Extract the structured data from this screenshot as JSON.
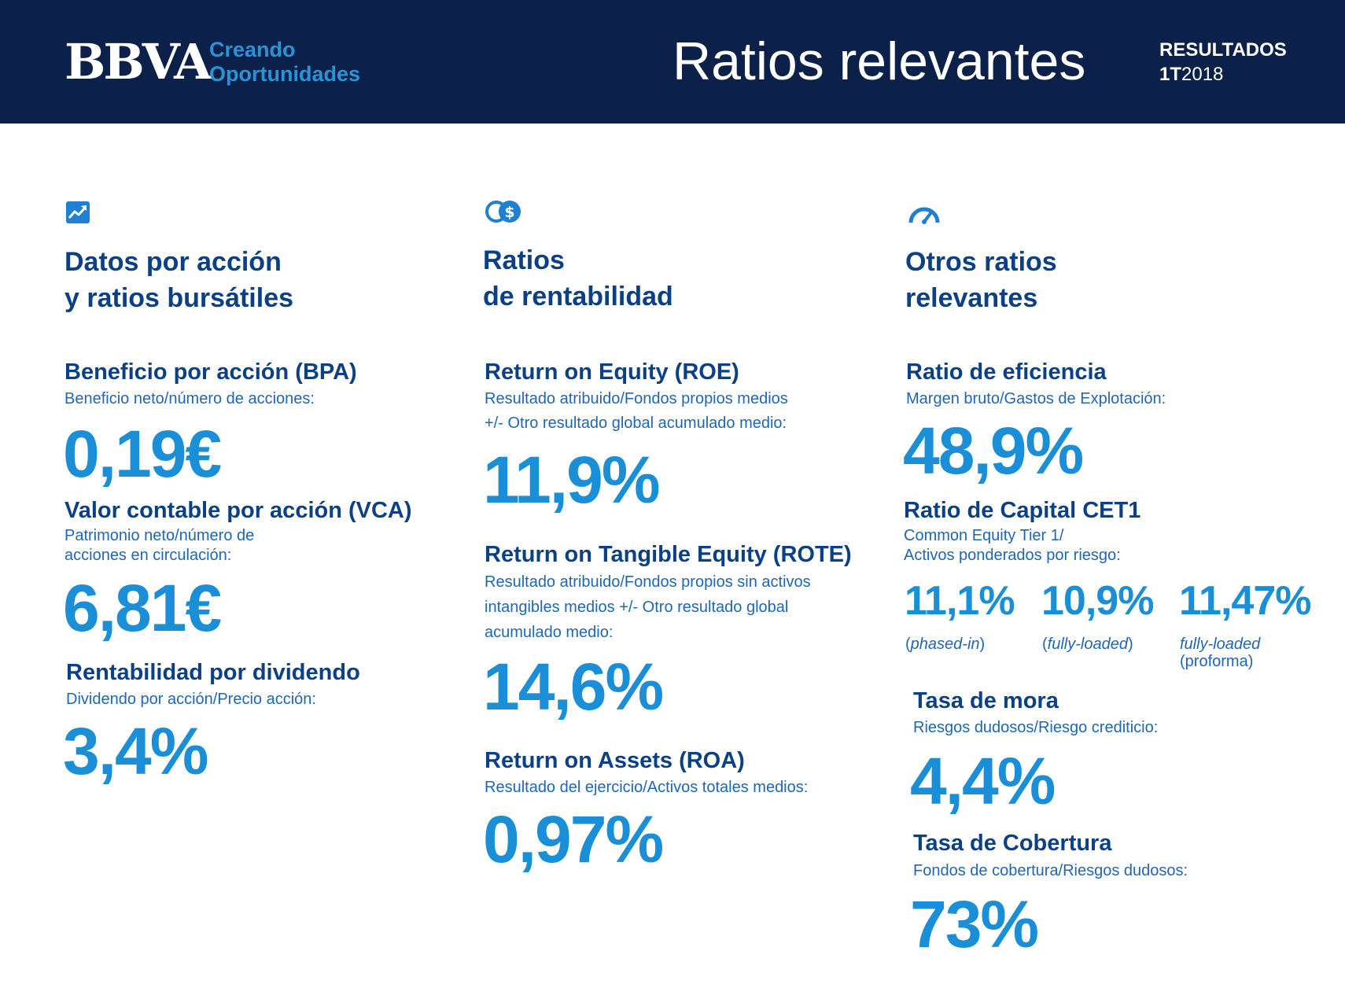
{
  "header": {
    "brand": "BBVA",
    "tagline_line1": "Creando",
    "tagline_line2": "Oportunidades",
    "title": "Ratios relevantes",
    "report_line1": "RESULTADOS",
    "report_quarter": "1T",
    "report_year": "2018"
  },
  "colors": {
    "header_bg": "#0b2149",
    "title_blue": "#0b3f86",
    "value_blue": "#1a8fd7",
    "desc_blue": "#1f66b5"
  },
  "col1": {
    "icon": "trend-up-icon",
    "title_line1": "Datos por acción",
    "title_line2": "y ratios bursátiles",
    "bpa": {
      "title": "Beneficio por acción (BPA)",
      "desc1": "Beneficio neto/número de acciones:",
      "value": "0,19€"
    },
    "vca": {
      "title": "Valor contable por acción (VCA)",
      "desc1": "Patrimonio neto/número de",
      "desc2": "acciones en circulación:",
      "value": "6,81€"
    },
    "div": {
      "title": "Rentabilidad por dividendo",
      "desc1": "Dividendo por acción/Precio acción:",
      "value": "3,4%"
    }
  },
  "col2": {
    "icon": "coins-dollar-icon",
    "title_line1": "Ratios",
    "title_line2": "de rentabilidad",
    "roe": {
      "title": "Return on Equity (ROE)",
      "desc1": "Resultado atribuido/Fondos propios medios",
      "desc2": "+/- Otro resultado global acumulado medio:",
      "value": "11,9%"
    },
    "rote": {
      "title": "Return on Tangible Equity (ROTE)",
      "desc1": "Resultado atribuido/Fondos propios sin activos",
      "desc2": "intangibles medios +/- Otro resultado global",
      "desc3": "acumulado medio:",
      "value": "14,6%"
    },
    "roa": {
      "title": "Return on Assets (ROA)",
      "desc1": "Resultado del ejercicio/Activos totales medios:",
      "value": "0,97%"
    }
  },
  "col3": {
    "icon": "speedometer-icon",
    "title_line1": "Otros ratios",
    "title_line2": "relevantes",
    "eff": {
      "title": "Ratio de eficiencia",
      "desc1": "Margen bruto/Gastos de Explotación:",
      "value": "48,9%"
    },
    "cet1": {
      "title": "Ratio de Capital CET1",
      "desc1": "Common Equity Tier 1/",
      "desc2": "Activos ponderados por riesgo:",
      "v1": "11,1%",
      "n1_open": "(",
      "n1": "phased-in",
      "n1_close": ")",
      "v2": "10,9%",
      "n2_open": "(",
      "n2": "fully-loaded",
      "n2_close": ")",
      "v3": "11,47%",
      "n3": "fully-loaded",
      "n3b": "(proforma)"
    },
    "mora": {
      "title": "Tasa de mora",
      "desc1": "Riesgos dudosos/Riesgo crediticio:",
      "value": "4,4%"
    },
    "cob": {
      "title": "Tasa de  Cobertura",
      "desc1": "Fondos de cobertura/Riesgos dudosos:",
      "value": "73%"
    }
  }
}
